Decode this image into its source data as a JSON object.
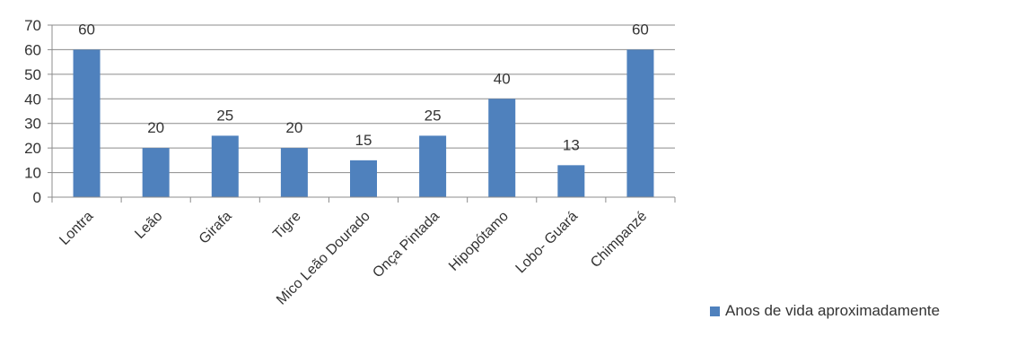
{
  "chart_data": {
    "type": "bar",
    "categories": [
      "Lontra",
      "Leão",
      "Girafa",
      "Tigre",
      "Mico Leão Dourado",
      "Onça Pintada",
      "Hipopótamo",
      "Lobo- Guará",
      "Chimpanzé"
    ],
    "series": [
      {
        "name": "Anos de vida aproximadamente",
        "values": [
          60,
          20,
          25,
          20,
          15,
          25,
          40,
          13,
          60
        ],
        "color": "#4f81bd"
      }
    ],
    "ylim": [
      0,
      70
    ],
    "yticks": [
      0,
      10,
      20,
      30,
      40,
      50,
      60,
      70
    ],
    "grid": true,
    "data_labels": true,
    "legend_position": "right"
  }
}
